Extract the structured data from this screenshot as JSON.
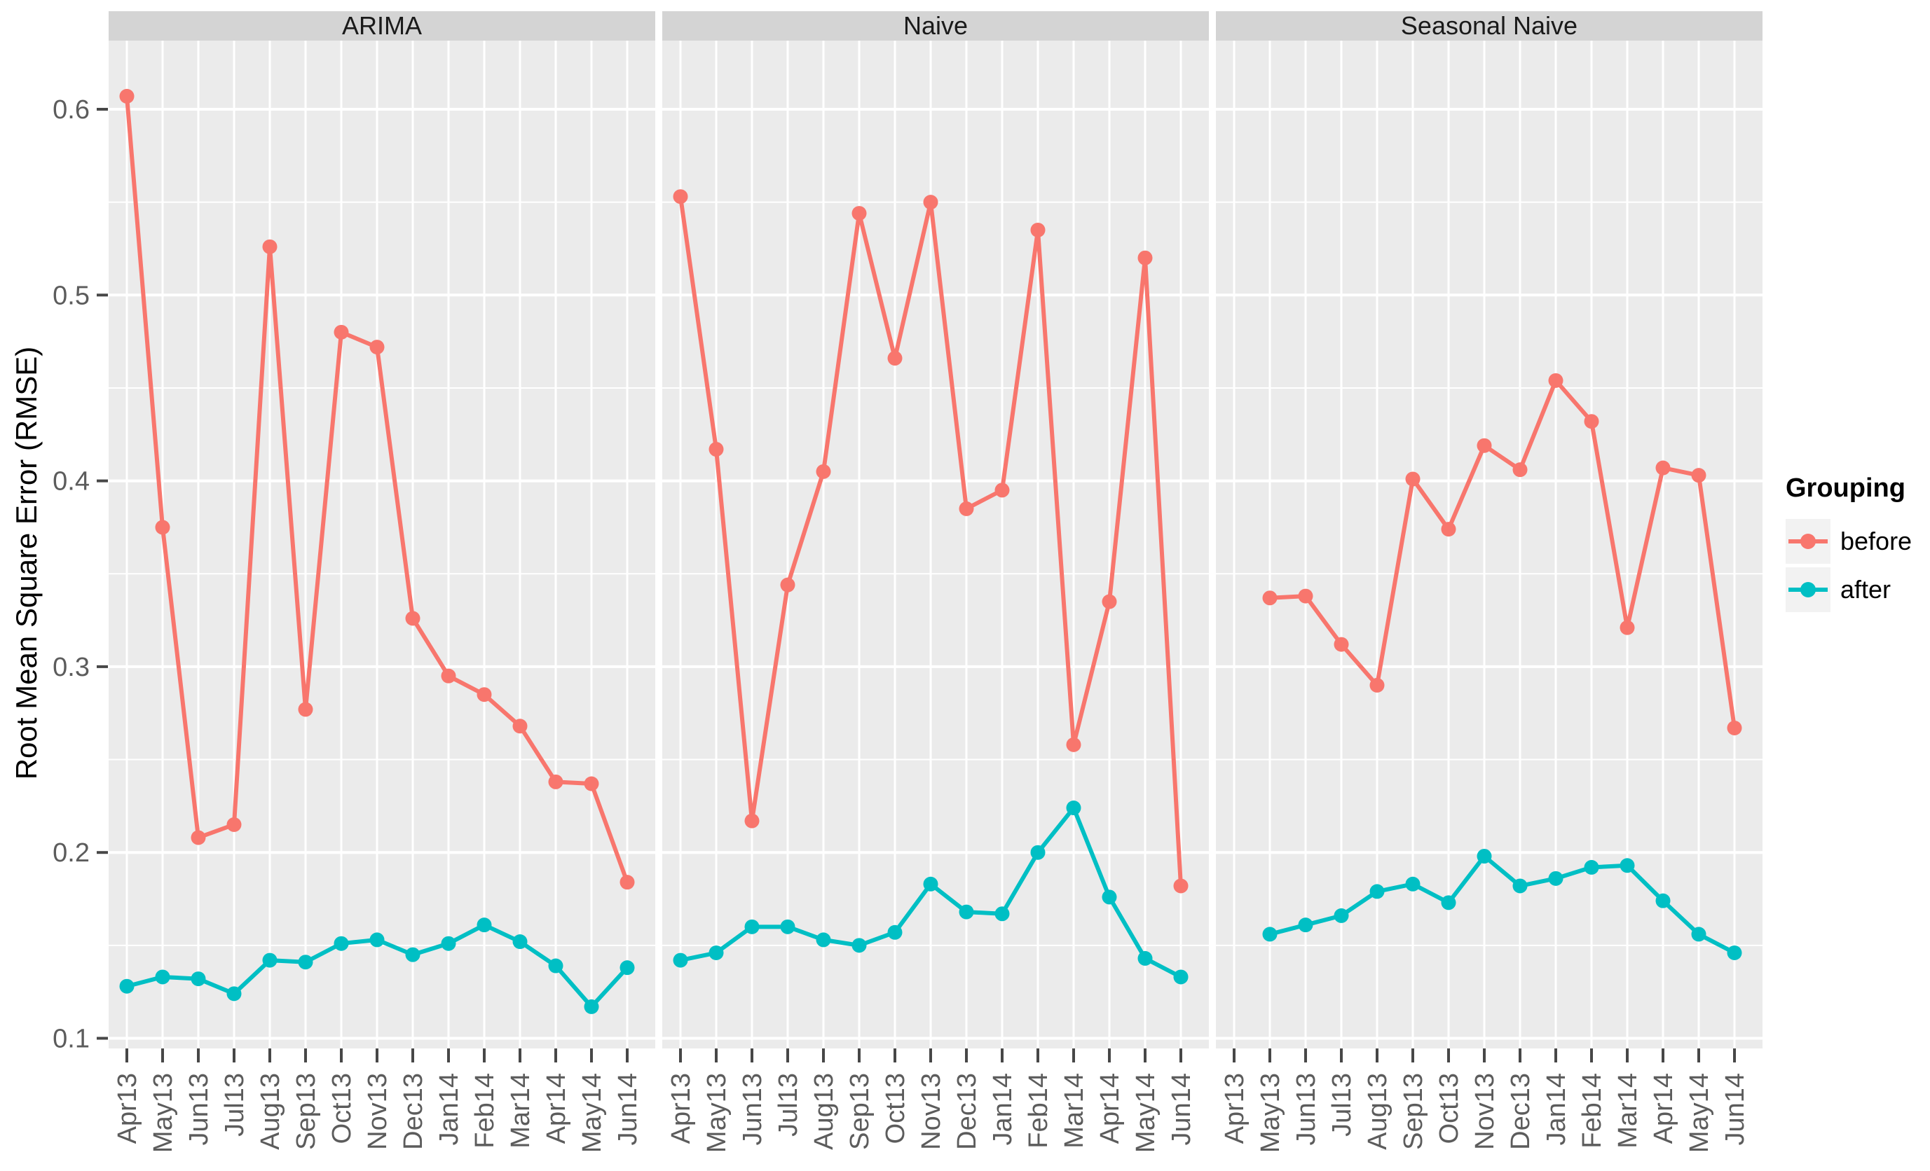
{
  "chart_data": {
    "type": "line",
    "title": "",
    "xlabel": "",
    "ylabel": "Root Mean Square Error (RMSE)",
    "ylim": [
      0.09,
      0.64
    ],
    "y_ticks": [
      0.1,
      0.2,
      0.3,
      0.4,
      0.5,
      0.6
    ],
    "y_tick_labels": [
      "0.1",
      "0.2",
      "0.3",
      "0.4",
      "0.5",
      "0.6"
    ],
    "y_minor_ticks": [
      0.15,
      0.25,
      0.35,
      0.45,
      0.55
    ],
    "grid": "white major and minor gridlines on gray panel",
    "legend_position": "right",
    "categories": [
      "Apr13",
      "May13",
      "Jun13",
      "Jul13",
      "Aug13",
      "Sep13",
      "Oct13",
      "Nov13",
      "Dec13",
      "Jan14",
      "Feb14",
      "Mar14",
      "Apr14",
      "May14",
      "Jun14"
    ],
    "facets": [
      {
        "label": "ARIMA",
        "series": [
          {
            "name": "before",
            "values": [
              0.607,
              0.375,
              0.208,
              0.215,
              0.526,
              0.277,
              0.48,
              0.472,
              0.326,
              0.295,
              0.285,
              0.268,
              0.238,
              0.237,
              0.184
            ]
          },
          {
            "name": "after",
            "values": [
              0.128,
              0.133,
              0.132,
              0.124,
              0.142,
              0.141,
              0.151,
              0.153,
              0.145,
              0.151,
              0.161,
              0.152,
              0.139,
              0.117,
              0.138
            ]
          }
        ]
      },
      {
        "label": "Naive",
        "series": [
          {
            "name": "before",
            "values": [
              0.553,
              0.417,
              0.217,
              0.344,
              0.405,
              0.544,
              0.466,
              0.55,
              0.385,
              0.395,
              0.535,
              0.258,
              0.335,
              0.52,
              0.182
            ]
          },
          {
            "name": "after",
            "values": [
              0.142,
              0.146,
              0.16,
              0.16,
              0.153,
              0.15,
              0.157,
              0.183,
              0.168,
              0.167,
              0.2,
              0.224,
              0.176,
              0.143,
              0.133
            ]
          }
        ]
      },
      {
        "label": "Seasonal Naive",
        "series": [
          {
            "name": "before",
            "values": [
              null,
              0.337,
              0.338,
              0.312,
              0.29,
              0.401,
              0.374,
              0.419,
              0.406,
              0.454,
              0.432,
              0.321,
              0.407,
              0.403,
              0.267
            ]
          },
          {
            "name": "after",
            "values": [
              null,
              0.156,
              0.161,
              0.166,
              0.179,
              0.183,
              0.173,
              0.198,
              0.182,
              0.186,
              0.192,
              0.193,
              0.174,
              0.156,
              0.146
            ]
          }
        ]
      }
    ]
  },
  "legend": {
    "title": "Grouping",
    "items": [
      {
        "label": "before",
        "color": "#F8766D"
      },
      {
        "label": "after",
        "color": "#00BFC4"
      }
    ]
  },
  "colors": {
    "before": "#F8766D",
    "after": "#00BFC4",
    "panel_bg": "#EBEBEB",
    "strip_bg": "#D4D4D4",
    "grid": "#FFFFFF",
    "axis_text": "#5c5c5c",
    "tick_mark": "#474747",
    "legend_key_bg": "#F2F2F2"
  }
}
